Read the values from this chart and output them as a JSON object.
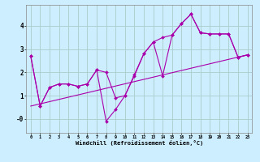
{
  "background_color": "#cceeff",
  "grid_color": "#aacccc",
  "line_color": "#aa00aa",
  "marker_color": "#aa00aa",
  "xlabel": "Windchill (Refroidissement éolien,°C)",
  "xlim": [
    -0.5,
    23.5
  ],
  "ylim": [
    -0.6,
    4.9
  ],
  "xticks": [
    0,
    1,
    2,
    3,
    4,
    5,
    6,
    7,
    8,
    9,
    10,
    11,
    12,
    13,
    14,
    15,
    16,
    17,
    18,
    19,
    20,
    21,
    22,
    23
  ],
  "yticks": [
    0,
    1,
    2,
    3,
    4
  ],
  "ytick_labels": [
    "-0",
    "1",
    "2",
    "3",
    "4"
  ],
  "series1": {
    "x": [
      0,
      1,
      2,
      3,
      4,
      5,
      6,
      7,
      8,
      9,
      10,
      11,
      12,
      13,
      14,
      15,
      16,
      17,
      18,
      19,
      20,
      21,
      22,
      23
    ],
    "y": [
      2.7,
      0.55,
      1.35,
      1.5,
      1.5,
      1.4,
      1.5,
      2.1,
      2.0,
      0.9,
      1.0,
      1.9,
      2.8,
      3.3,
      3.5,
      3.6,
      4.1,
      4.5,
      3.7,
      3.65,
      3.65,
      3.65,
      2.65,
      2.75
    ]
  },
  "series2": {
    "x": [
      0,
      1,
      2,
      3,
      4,
      5,
      6,
      7,
      8,
      9,
      10,
      11,
      12,
      13,
      14,
      15,
      16,
      17,
      18,
      19,
      20,
      21,
      22,
      23
    ],
    "y": [
      2.7,
      0.55,
      1.35,
      1.5,
      1.5,
      1.4,
      1.5,
      2.1,
      -0.1,
      0.4,
      1.0,
      1.85,
      2.8,
      3.3,
      1.85,
      3.6,
      4.1,
      4.5,
      3.7,
      3.65,
      3.65,
      3.65,
      2.65,
      2.75
    ]
  },
  "series3": {
    "x": [
      0,
      23
    ],
    "y": [
      0.55,
      2.75
    ]
  },
  "figwidth": 3.2,
  "figheight": 2.0,
  "dpi": 100
}
